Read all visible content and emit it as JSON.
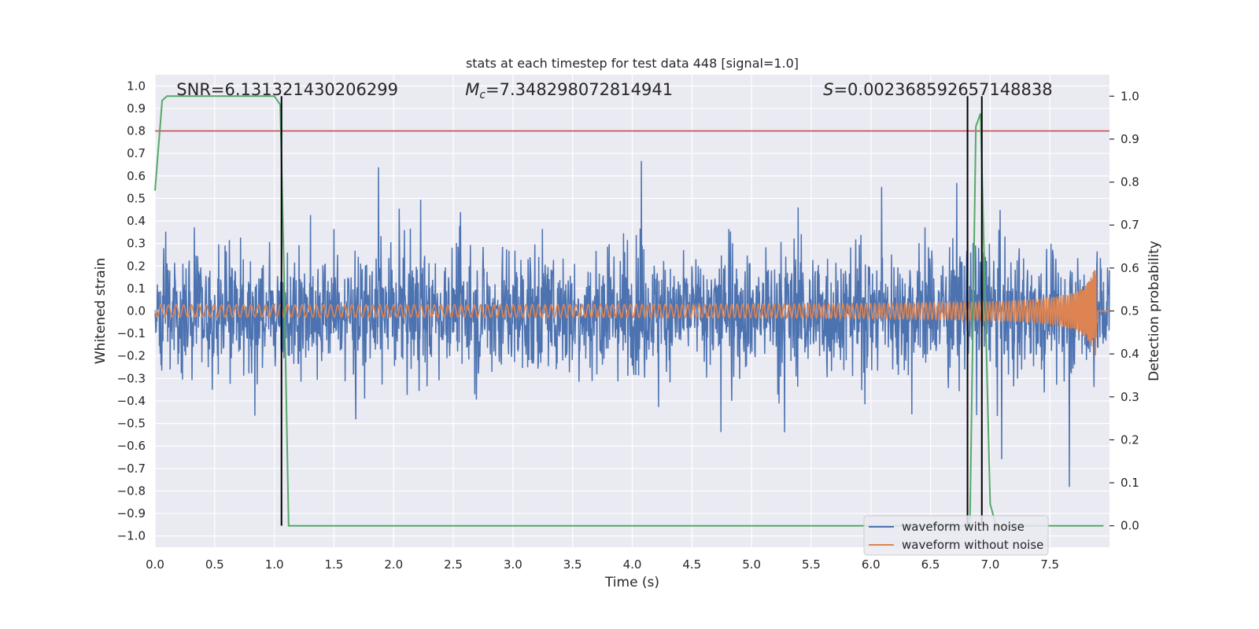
{
  "chart_data": {
    "type": "line",
    "title": "stats at each timestep for test data 448 [signal=1.0]",
    "xlabel": "Time (s)",
    "ylabel": "Whitened strain",
    "y2label": "Detection probability",
    "xlim": [
      0.0,
      8.0
    ],
    "ylim": [
      -1.05,
      1.05
    ],
    "y2lim": [
      -0.05,
      1.05
    ],
    "x_ticks": [
      "0.0",
      "0.5",
      "1.0",
      "1.5",
      "2.0",
      "2.5",
      "3.0",
      "3.5",
      "4.0",
      "4.5",
      "5.0",
      "5.5",
      "6.0",
      "6.5",
      "7.0",
      "7.5"
    ],
    "y_ticks": [
      "1.0",
      "0.9",
      "0.8",
      "0.7",
      "0.6",
      "0.5",
      "0.4",
      "0.3",
      "0.2",
      "0.1",
      "0.0",
      "−0.1",
      "−0.2",
      "−0.3",
      "−0.4",
      "−0.5",
      "−0.6",
      "−0.7",
      "−0.8",
      "−0.9",
      "−1.0"
    ],
    "y2_ticks": [
      "1.0",
      "0.9",
      "0.8",
      "0.7",
      "0.6",
      "0.5",
      "0.4",
      "0.3",
      "0.2",
      "0.1",
      "0.0"
    ],
    "annotations": {
      "snr": "SNR=6.131321430206299",
      "mc_symbol": "M",
      "mc_sub": "c",
      "mc_value": "=7.348298072814941",
      "s_symbol": "S",
      "s_value": "=0.002368592657148838"
    },
    "threshold": 0.8,
    "vertical_lines_x": [
      1.06,
      6.81,
      6.93
    ],
    "series": [
      {
        "name": "waveform with noise",
        "color": "#4c72b0",
        "kind": "noise",
        "envelope": 0.45,
        "peak": 1.0,
        "x_end": 8.0
      },
      {
        "name": "waveform without noise",
        "color": "#dd8452",
        "kind": "chirp",
        "amplitude_start": 0.025,
        "amplitude_end": 0.24,
        "t_merger": 7.9,
        "x_end": 8.0
      },
      {
        "name": "",
        "color": "#55a868",
        "axis": "right",
        "x": [
          0.0,
          0.06,
          0.1,
          0.2,
          0.5,
          1.0,
          1.05,
          1.08,
          1.12,
          6.8,
          6.83,
          6.88,
          6.92,
          6.96,
          7.0,
          7.05,
          7.95
        ],
        "y": [
          0.78,
          0.99,
          1.0,
          1.0,
          1.0,
          1.0,
          0.98,
          0.6,
          0.0,
          0.0,
          0.0,
          0.93,
          0.96,
          0.5,
          0.05,
          0.0,
          0.0
        ]
      }
    ],
    "legend_placement": "lower-right",
    "grid": true
  }
}
